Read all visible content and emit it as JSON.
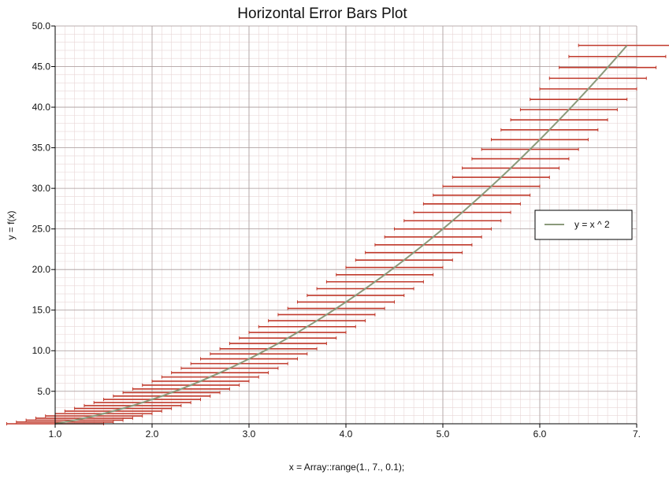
{
  "chart_data": {
    "type": "line",
    "title": "Horizontal Error Bars Plot",
    "xlabel": "x = Array::range(1., 7., 0.1);",
    "ylabel": "y = f(x)",
    "xlim": [
      1.0,
      7.0
    ],
    "ylim": [
      1.0,
      50.0
    ],
    "x_tick_labels": [
      "1.0",
      "2.0",
      "3.0",
      "4.0",
      "5.0",
      "6.0",
      "7."
    ],
    "x_tick_values": [
      1,
      2,
      3,
      4,
      5,
      6,
      7
    ],
    "y_tick_labels": [
      "5.0",
      "10.0",
      "15.0",
      "20.0",
      "25.0",
      "30.0",
      "35.0",
      "40.0",
      "45.0",
      "50.0"
    ],
    "y_tick_values": [
      5,
      10,
      15,
      20,
      25,
      30,
      35,
      40,
      45,
      50
    ],
    "grid": true,
    "legend_position": "right",
    "series": [
      {
        "name": "y = x ^ 2",
        "color": "#8a9a7b",
        "x": [
          1.0,
          1.1,
          1.2,
          1.3,
          1.4,
          1.5,
          1.6,
          1.7,
          1.8,
          1.9,
          2.0,
          2.1,
          2.2,
          2.3,
          2.4,
          2.5,
          2.6,
          2.7,
          2.8,
          2.9,
          3.0,
          3.1,
          3.2,
          3.3,
          3.4,
          3.5,
          3.6,
          3.7,
          3.8,
          3.9,
          4.0,
          4.1,
          4.2,
          4.3,
          4.4,
          4.5,
          4.6,
          4.7,
          4.8,
          4.9,
          5.0,
          5.1,
          5.2,
          5.3,
          5.4,
          5.5,
          5.6,
          5.7,
          5.8,
          5.9,
          6.0,
          6.1,
          6.2,
          6.3,
          6.4,
          6.5,
          6.6,
          6.7,
          6.8,
          6.9
        ],
        "y": [
          1.0,
          1.21,
          1.44,
          1.69,
          1.96,
          2.25,
          2.56,
          2.89,
          3.24,
          3.61,
          4.0,
          4.41,
          4.84,
          5.29,
          5.76,
          6.25,
          6.76,
          7.29,
          7.84,
          8.41,
          9.0,
          9.61,
          10.24,
          10.89,
          11.56,
          12.25,
          12.96,
          13.69,
          14.44,
          15.21,
          16.0,
          16.81,
          17.64,
          18.49,
          19.36,
          20.25,
          21.16,
          22.09,
          23.04,
          24.01,
          25.0,
          26.01,
          27.04,
          28.09,
          29.16,
          30.25,
          31.36,
          32.49,
          33.64,
          34.81,
          36.0,
          37.21,
          38.44,
          39.69,
          40.96,
          42.25,
          43.56,
          44.89,
          46.24,
          47.61
        ],
        "x_error": 0.5,
        "error_color": "#c0392b"
      }
    ]
  }
}
